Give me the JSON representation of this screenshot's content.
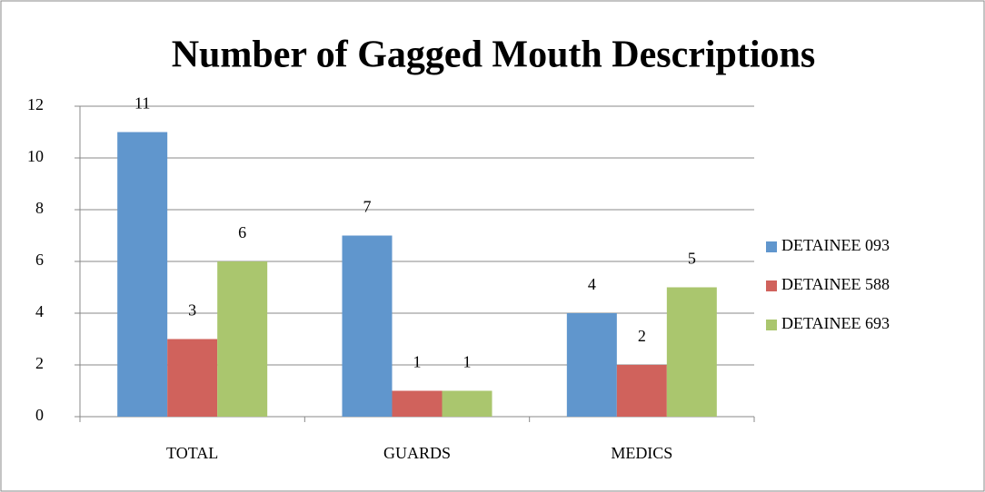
{
  "chart_data": {
    "type": "bar",
    "title": "Number of Gagged Mouth Descriptions",
    "categories": [
      "TOTAL",
      "GUARDS",
      "MEDICS"
    ],
    "series": [
      {
        "name": "DETAINEE 093",
        "color": "#6096cd",
        "values": [
          11,
          7,
          4
        ]
      },
      {
        "name": "DETAINEE 588",
        "color": "#d0625c",
        "values": [
          3,
          1,
          2
        ]
      },
      {
        "name": "DETAINEE 693",
        "color": "#aac66e",
        "values": [
          6,
          1,
          5
        ]
      }
    ],
    "ylim": [
      0,
      12
    ],
    "yticks": [
      0,
      2,
      4,
      6,
      8,
      10,
      12
    ],
    "grid": true,
    "legend": "right",
    "data_labels": true
  }
}
